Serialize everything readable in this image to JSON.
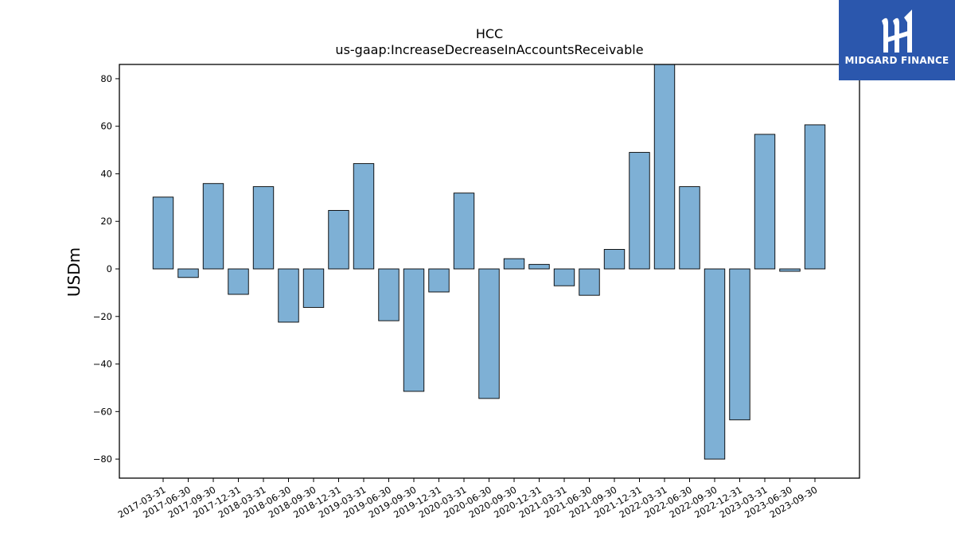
{
  "brand": {
    "name": "MIDGARD FINANCE",
    "logo_icon": "midgard-logo-icon",
    "color": "#2b57ad"
  },
  "chart_data": {
    "type": "bar",
    "title": "HCC",
    "subtitle": "us-gaap:IncreaseDecreaseInAccountsReceivable",
    "xlabel": "",
    "ylabel": "USDm",
    "ylim": [
      -88,
      86
    ],
    "yticks": [
      -80,
      -60,
      -40,
      -20,
      0,
      20,
      40,
      60,
      80
    ],
    "grid": false,
    "bar_color": "#7eb0d5",
    "categories": [
      "2017-03-31",
      "2017-06-30",
      "2017-09-30",
      "2017-12-31",
      "2018-03-31",
      "2018-06-30",
      "2018-09-30",
      "2018-12-31",
      "2019-03-31",
      "2019-06-30",
      "2019-09-30",
      "2019-12-31",
      "2020-03-31",
      "2020-06-30",
      "2020-09-30",
      "2020-12-31",
      "2021-03-31",
      "2021-06-30",
      "2021-09-30",
      "2021-12-31",
      "2022-03-31",
      "2022-06-30",
      "2022-09-30",
      "2022-12-31",
      "2023-03-31",
      "2023-06-30",
      "2023-09-30"
    ],
    "values": [
      30.2,
      -3.6,
      35.9,
      -10.7,
      34.6,
      -22.4,
      -16.2,
      24.6,
      44.3,
      -21.8,
      -51.5,
      -9.7,
      31.9,
      -54.5,
      4.3,
      1.9,
      -7.1,
      -11.1,
      8.2,
      49.0,
      86.0,
      34.6,
      -80.0,
      -63.5,
      56.6,
      -1.0,
      60.6
    ]
  }
}
